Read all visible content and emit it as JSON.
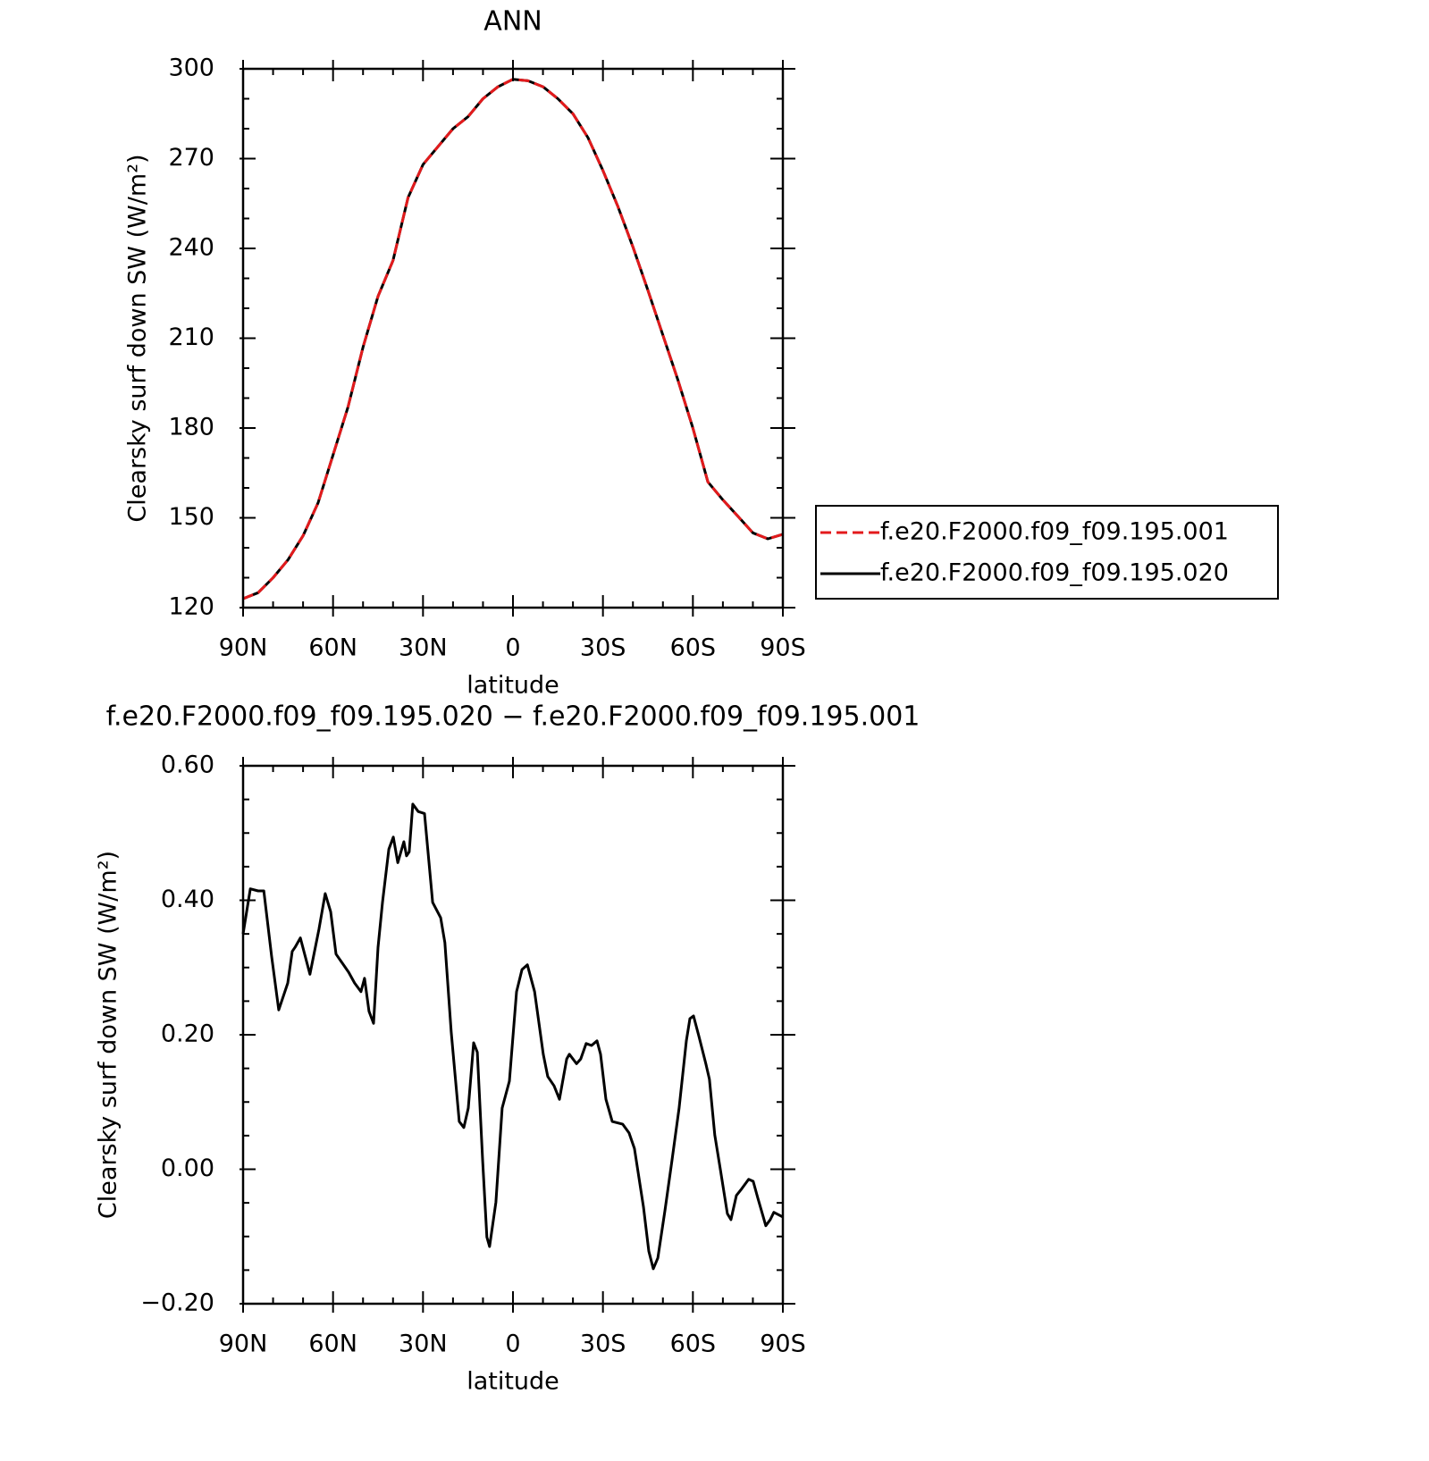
{
  "chart_data": [
    {
      "type": "line",
      "title": "ANN",
      "xlabel": "latitude",
      "ylabel": "Clearsky surf down SW (W/m²)",
      "x": [
        90,
        85,
        80,
        75,
        70,
        65,
        60,
        55,
        50,
        45,
        40,
        35,
        30,
        25,
        20,
        15,
        10,
        5,
        0,
        -5,
        -10,
        -15,
        -20,
        -25,
        -30,
        -35,
        -40,
        -45,
        -50,
        -55,
        -60,
        -65,
        -70,
        -75,
        -80,
        -85,
        -90
      ],
      "series": [
        {
          "name": "f.e20.F2000.f09_f09.195.001",
          "color": "#e31a1c",
          "line_style": "dashed",
          "values": [
            123,
            125,
            130,
            136,
            144,
            155,
            171,
            187,
            207,
            224,
            236,
            257,
            268,
            274,
            280,
            284,
            290,
            294,
            296.5,
            296,
            294,
            290,
            285,
            277,
            266,
            254,
            240.5,
            226,
            211,
            196,
            180,
            162,
            156,
            150.5,
            145,
            143,
            144.5
          ]
        },
        {
          "name": "f.e20.F2000.f09_f09.195.020",
          "color": "#000000",
          "line_style": "solid",
          "values": [
            123,
            125,
            130,
            136,
            144,
            155,
            171,
            187,
            207,
            224,
            236,
            257,
            268,
            274,
            280,
            284,
            290,
            294,
            296.5,
            296,
            294,
            290,
            285,
            277,
            266,
            254,
            240.5,
            226,
            211,
            196,
            180,
            162,
            156,
            150.5,
            145,
            143,
            144.5
          ]
        }
      ],
      "xlim": [
        90,
        -90
      ],
      "xticks": [
        {
          "value": 90,
          "label": "90N"
        },
        {
          "value": 60,
          "label": "60N"
        },
        {
          "value": 30,
          "label": "30N"
        },
        0,
        {
          "value": -30,
          "label": "30S"
        },
        {
          "value": -60,
          "label": "60S"
        },
        {
          "value": -90,
          "label": "90S"
        }
      ],
      "xminorticks": [
        80,
        70,
        50,
        40,
        20,
        10,
        -10,
        -20,
        -40,
        -50,
        -70,
        -80
      ],
      "ylim": [
        120,
        300
      ],
      "yticks": [
        120,
        150,
        180,
        210,
        240,
        270,
        300
      ],
      "yminorticks": [
        130,
        140,
        160,
        170,
        190,
        200,
        220,
        230,
        250,
        260,
        280,
        290
      ],
      "legend": "outside-right"
    },
    {
      "type": "line",
      "title": "f.e20.F2000.f09_f09.195.020 − f.e20.F2000.f09_f09.195.001",
      "xlabel": "latitude",
      "ylabel": "Clearsky surf down SW (W/m²)",
      "x": [
        90,
        87.6,
        85,
        83.1,
        80.5,
        78.1,
        75.1,
        73.6,
        72.7,
        70.9,
        67.7,
        64.7,
        62.6,
        60.8,
        59.0,
        54.8,
        52.8,
        50.7,
        49.5,
        48.0,
        46.5,
        45.0,
        43.5,
        41.4,
        39.9,
        38.4,
        36.4,
        35.5,
        34.6,
        33.4,
        31.6,
        29.5,
        26.8,
        24.1,
        22.7,
        20.6,
        17.9,
        16.4,
        14.9,
        13.1,
        11.9,
        10.1,
        8.7,
        7.8,
        5.7,
        3.6,
        1.2,
        -1.2,
        -3.0,
        -4.8,
        -7.2,
        -10.1,
        -11.6,
        -13.7,
        -15.5,
        -17.9,
        -18.8,
        -21.2,
        -22.6,
        -24.4,
        -26.2,
        -28.0,
        -29.2,
        -31.0,
        -33.1,
        -36.6,
        -38.7,
        -40.5,
        -43.5,
        -45.3,
        -46.8,
        -48.3,
        -50.7,
        -53.0,
        -55.4,
        -57.8,
        -59.0,
        -60.2,
        -62.0,
        -64.3,
        -65.5,
        -67.3,
        -69.1,
        -71.5,
        -72.7,
        -74.5,
        -76.3,
        -78.6,
        -80.1,
        -81.6,
        -84.3,
        -85.8,
        -87.0,
        -90
      ],
      "color": "#000000",
      "values": [
        0.35,
        0.417,
        0.414,
        0.414,
        0.317,
        0.237,
        0.277,
        0.324,
        0.33,
        0.344,
        0.29,
        0.357,
        0.41,
        0.383,
        0.32,
        0.293,
        0.277,
        0.264,
        0.284,
        0.235,
        0.217,
        0.33,
        0.397,
        0.476,
        0.494,
        0.456,
        0.487,
        0.466,
        0.472,
        0.543,
        0.532,
        0.529,
        0.397,
        0.374,
        0.337,
        0.204,
        0.071,
        0.062,
        0.091,
        0.188,
        0.174,
        0.012,
        -0.101,
        -0.115,
        -0.049,
        0.091,
        0.131,
        0.264,
        0.297,
        0.304,
        0.264,
        0.171,
        0.138,
        0.124,
        0.104,
        0.164,
        0.171,
        0.157,
        0.164,
        0.187,
        0.184,
        0.191,
        0.171,
        0.104,
        0.071,
        0.067,
        0.054,
        0.031,
        -0.056,
        -0.122,
        -0.148,
        -0.132,
        -0.061,
        0.012,
        0.091,
        0.191,
        0.224,
        0.228,
        0.198,
        0.157,
        0.134,
        0.051,
        0.001,
        -0.066,
        -0.075,
        -0.039,
        -0.029,
        -0.015,
        -0.018,
        -0.042,
        -0.084,
        -0.075,
        -0.064,
        -0.071
      ],
      "xlim": [
        90,
        -90
      ],
      "xticks": [
        {
          "value": 90,
          "label": "90N"
        },
        {
          "value": 60,
          "label": "60N"
        },
        {
          "value": 30,
          "label": "30N"
        },
        0,
        {
          "value": -30,
          "label": "30S"
        },
        {
          "value": -60,
          "label": "60S"
        },
        {
          "value": -90,
          "label": "90S"
        }
      ],
      "xminorticks": [
        80,
        70,
        50,
        40,
        20,
        10,
        -10,
        -20,
        -40,
        -50,
        -70,
        -80
      ],
      "ylim": [
        -0.2,
        0.6
      ],
      "yticks": [
        {
          "value": -0.2,
          "label": "−0.20"
        },
        {
          "value": 0,
          "label": "0.00"
        },
        {
          "value": 0.2,
          "label": "0.20"
        },
        {
          "value": 0.4,
          "label": "0.40"
        },
        {
          "value": 0.6,
          "label": "0.60"
        }
      ],
      "yminorticks": [
        -0.15,
        -0.1,
        -0.05,
        0.05,
        0.1,
        0.15,
        0.25,
        0.3,
        0.35,
        0.45,
        0.5,
        0.55
      ]
    }
  ]
}
